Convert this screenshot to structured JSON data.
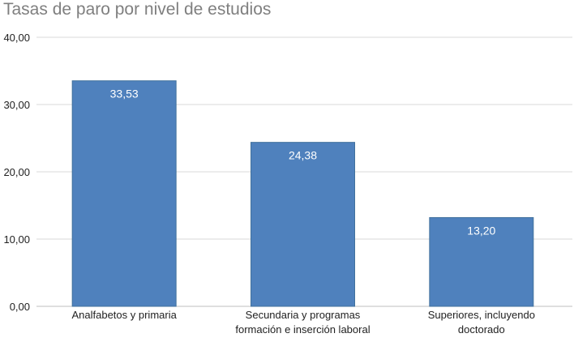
{
  "chart_data": {
    "type": "bar",
    "title": "Tasas de paro por nivel de estudios",
    "xlabel": "",
    "ylabel": "",
    "categories": [
      [
        "Analfabetos y primaria"
      ],
      [
        "Secundaria y programas",
        "formación e inserción laboral"
      ],
      [
        "Superiores, incluyendo",
        "doctorado"
      ]
    ],
    "values": [
      33.53,
      24.38,
      13.2
    ],
    "value_labels": [
      "33,53",
      "24,38",
      "13,20"
    ],
    "ylim": [
      0,
      40
    ],
    "yticks": [
      0,
      10,
      20,
      30,
      40
    ],
    "ytick_labels": [
      "0,00",
      "10,00",
      "20,00",
      "30,00",
      "40,00"
    ],
    "grid": true,
    "bar_color": "#4f81bd",
    "bar_edge_color": "#41719c",
    "grid_color": "#d9d9d9"
  }
}
